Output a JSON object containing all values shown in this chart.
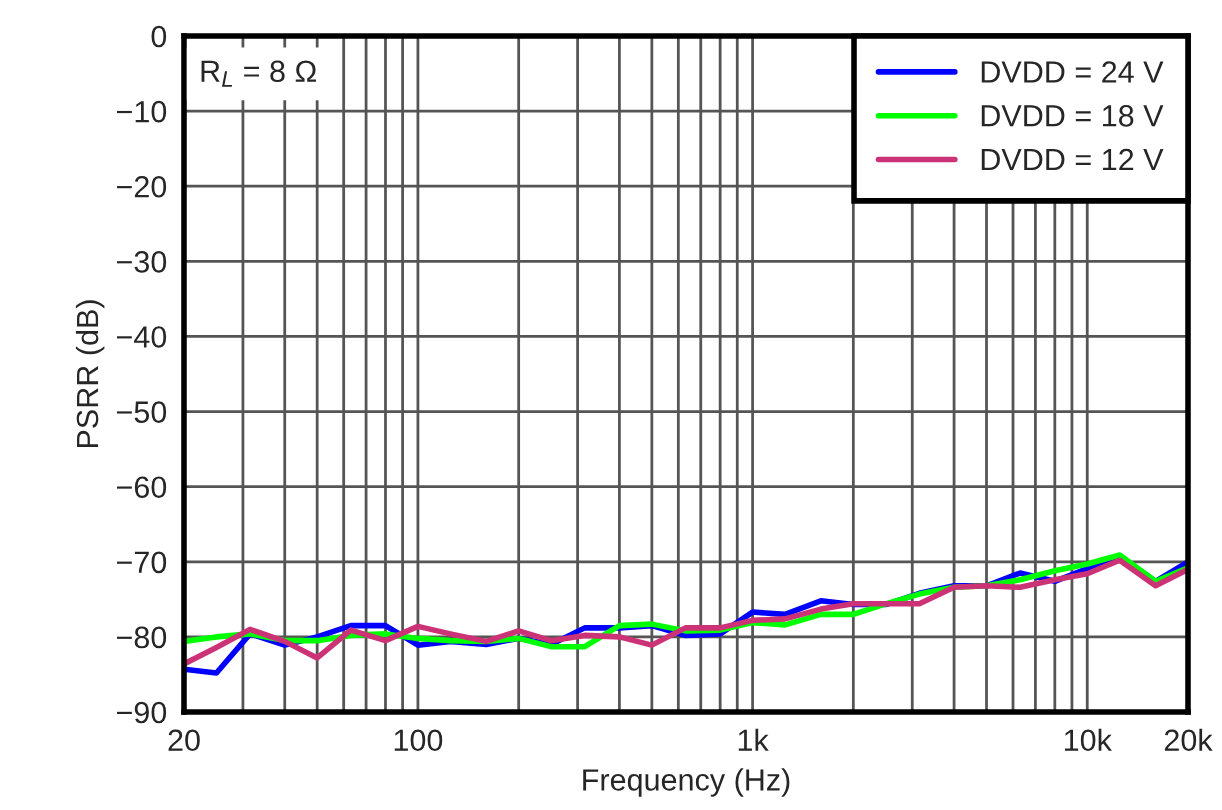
{
  "chart_data": {
    "type": "line",
    "xlabel": "Frequency (Hz)",
    "ylabel": "PSRR (dB)",
    "annotations": [
      "R$_{L}$ = 8 Ω"
    ],
    "x": [
      20,
      25,
      31.5,
      40,
      50,
      63,
      80,
      100,
      125,
      160,
      200,
      250,
      315,
      400,
      500,
      630,
      800,
      1000,
      1250,
      1600,
      2000,
      2500,
      3150,
      4000,
      5000,
      6300,
      8000,
      10000,
      12500,
      16000,
      20000
    ],
    "series": [
      {
        "name": "DVDD = 24 V",
        "color": "#0000ff",
        "values": [
          -84.3,
          -84.8,
          -79.6,
          -81.1,
          -80.0,
          -78.5,
          -78.5,
          -81.1,
          -80.6,
          -81.0,
          -80.2,
          -81.0,
          -78.8,
          -78.8,
          -78.5,
          -79.8,
          -79.6,
          -76.7,
          -77.0,
          -75.2,
          -75.7,
          -75.7,
          -74.2,
          -73.2,
          -73.2,
          -71.5,
          -72.6,
          -70.9,
          -69.3,
          -72.6,
          -70.0
        ]
      },
      {
        "name": "DVDD = 18 V",
        "color": "#00ff00",
        "values": [
          -80.6,
          -80.0,
          -79.6,
          -80.5,
          -80.5,
          -79.8,
          -79.6,
          -80.2,
          -80.5,
          -80.6,
          -80.2,
          -81.3,
          -81.3,
          -78.5,
          -78.3,
          -79.2,
          -79.1,
          -78.1,
          -78.4,
          -77.0,
          -77.0,
          -75.6,
          -74.3,
          -73.4,
          -73.2,
          -72.4,
          -71.2,
          -70.3,
          -69.1,
          -72.6,
          -70.8
        ]
      },
      {
        "name": "DVDD = 12 V",
        "color": "#cc3377",
        "values": [
          -83.6,
          -81.4,
          -79.0,
          -80.6,
          -82.8,
          -79.1,
          -80.5,
          -78.6,
          -79.6,
          -80.6,
          -79.2,
          -80.5,
          -79.8,
          -80.0,
          -81.1,
          -78.8,
          -78.8,
          -77.8,
          -77.6,
          -76.3,
          -75.6,
          -75.6,
          -75.6,
          -73.4,
          -73.2,
          -73.4,
          -72.4,
          -71.6,
          -69.8,
          -73.2,
          -71.0
        ]
      }
    ],
    "log": "x",
    "xlim": [
      20,
      20000
    ],
    "ylim": [
      -90,
      0
    ],
    "xticks": [
      {
        "value": 20,
        "label": "20"
      },
      {
        "value": 30,
        "label": null
      },
      {
        "value": 40,
        "label": null
      },
      {
        "value": 50,
        "label": null
      },
      {
        "value": 60,
        "label": null
      },
      {
        "value": 70,
        "label": null
      },
      {
        "value": 80,
        "label": null
      },
      {
        "value": 90,
        "label": null
      },
      {
        "value": 100,
        "label": "100"
      },
      {
        "value": 200,
        "label": null
      },
      {
        "value": 300,
        "label": null
      },
      {
        "value": 400,
        "label": null
      },
      {
        "value": 500,
        "label": null
      },
      {
        "value": 600,
        "label": null
      },
      {
        "value": 700,
        "label": null
      },
      {
        "value": 800,
        "label": null
      },
      {
        "value": 900,
        "label": null
      },
      {
        "value": 1000,
        "label": "1k"
      },
      {
        "value": 2000,
        "label": null
      },
      {
        "value": 3000,
        "label": null
      },
      {
        "value": 4000,
        "label": null
      },
      {
        "value": 5000,
        "label": null
      },
      {
        "value": 6000,
        "label": null
      },
      {
        "value": 7000,
        "label": null
      },
      {
        "value": 8000,
        "label": null
      },
      {
        "value": 9000,
        "label": null
      },
      {
        "value": 10000,
        "label": "10k"
      },
      {
        "value": 20000,
        "label": "20k"
      }
    ],
    "yticks": [
      {
        "value": -90,
        "label": "−90"
      },
      {
        "value": -80,
        "label": "−80"
      },
      {
        "value": -70,
        "label": "−70"
      },
      {
        "value": -60,
        "label": "−60"
      },
      {
        "value": -50,
        "label": "−50"
      },
      {
        "value": -40,
        "label": "−40"
      },
      {
        "value": -30,
        "label": "−30"
      },
      {
        "value": -20,
        "label": "−20"
      },
      {
        "value": -10,
        "label": "−10"
      },
      {
        "value": 0,
        "label": "0"
      }
    ],
    "grid": true,
    "legend": "top right",
    "line_style": "solid",
    "marker": "none"
  }
}
